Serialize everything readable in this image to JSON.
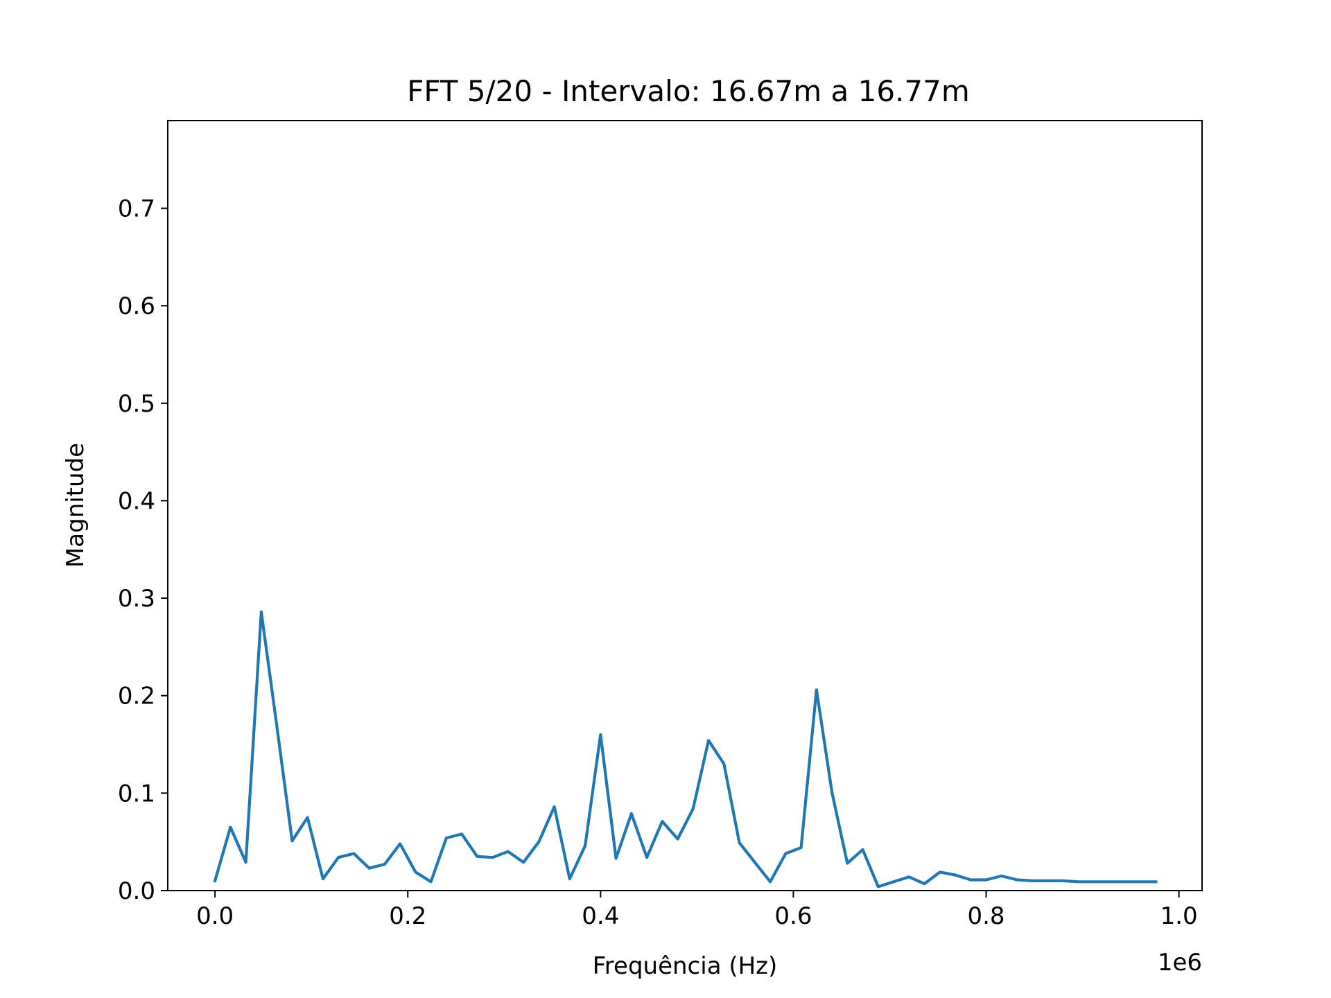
{
  "chart_data": {
    "type": "line",
    "title": "FFT 5/20 - Intervalo: 16.67m a 16.77m",
    "xlabel": "Frequência (Hz)",
    "ylabel": "Magnitude",
    "x_offset_label": "1e6",
    "xlim": [
      -0.049,
      1.024
    ],
    "ylim": [
      0.0,
      0.79
    ],
    "x_ticks": [
      0.0,
      0.2,
      0.4,
      0.6,
      0.8,
      1.0
    ],
    "x_tick_labels": [
      "0.0",
      "0.2",
      "0.4",
      "0.6",
      "0.8",
      "1.0"
    ],
    "y_ticks": [
      0.0,
      0.1,
      0.2,
      0.3,
      0.4,
      0.5,
      0.6,
      0.7
    ],
    "y_tick_labels": [
      "0.0",
      "0.1",
      "0.2",
      "0.3",
      "0.4",
      "0.5",
      "0.6",
      "0.7"
    ],
    "grid": false,
    "line_color": "#1f77b4",
    "series": [
      {
        "x": [
          0.0,
          0.016,
          0.032,
          0.048,
          0.064,
          0.08,
          0.096,
          0.112,
          0.128,
          0.144,
          0.16,
          0.176,
          0.192,
          0.208,
          0.224,
          0.24,
          0.256,
          0.272,
          0.288,
          0.304,
          0.32,
          0.336,
          0.352,
          0.368,
          0.384,
          0.4,
          0.416,
          0.432,
          0.448,
          0.464,
          0.48,
          0.496,
          0.512,
          0.528,
          0.544,
          0.56,
          0.576,
          0.592,
          0.608,
          0.624,
          0.64,
          0.656,
          0.672,
          0.688,
          0.704,
          0.72,
          0.736,
          0.752,
          0.768,
          0.784,
          0.8,
          0.816,
          0.832,
          0.848,
          0.864,
          0.88,
          0.896,
          0.912,
          0.928,
          0.944,
          0.96,
          0.976
        ],
        "values": [
          0.01,
          0.065,
          0.029,
          0.286,
          0.17,
          0.051,
          0.075,
          0.012,
          0.034,
          0.038,
          0.023,
          0.027,
          0.048,
          0.019,
          0.009,
          0.054,
          0.058,
          0.035,
          0.034,
          0.04,
          0.029,
          0.05,
          0.086,
          0.012,
          0.046,
          0.16,
          0.033,
          0.079,
          0.034,
          0.071,
          0.053,
          0.084,
          0.154,
          0.13,
          0.049,
          0.029,
          0.009,
          0.038,
          0.044,
          0.206,
          0.101,
          0.028,
          0.042,
          0.004,
          0.009,
          0.014,
          0.007,
          0.019,
          0.016,
          0.011,
          0.011,
          0.015,
          0.011,
          0.01,
          0.01,
          0.01,
          0.009,
          0.009,
          0.009,
          0.009,
          0.009,
          0.009
        ]
      }
    ]
  }
}
